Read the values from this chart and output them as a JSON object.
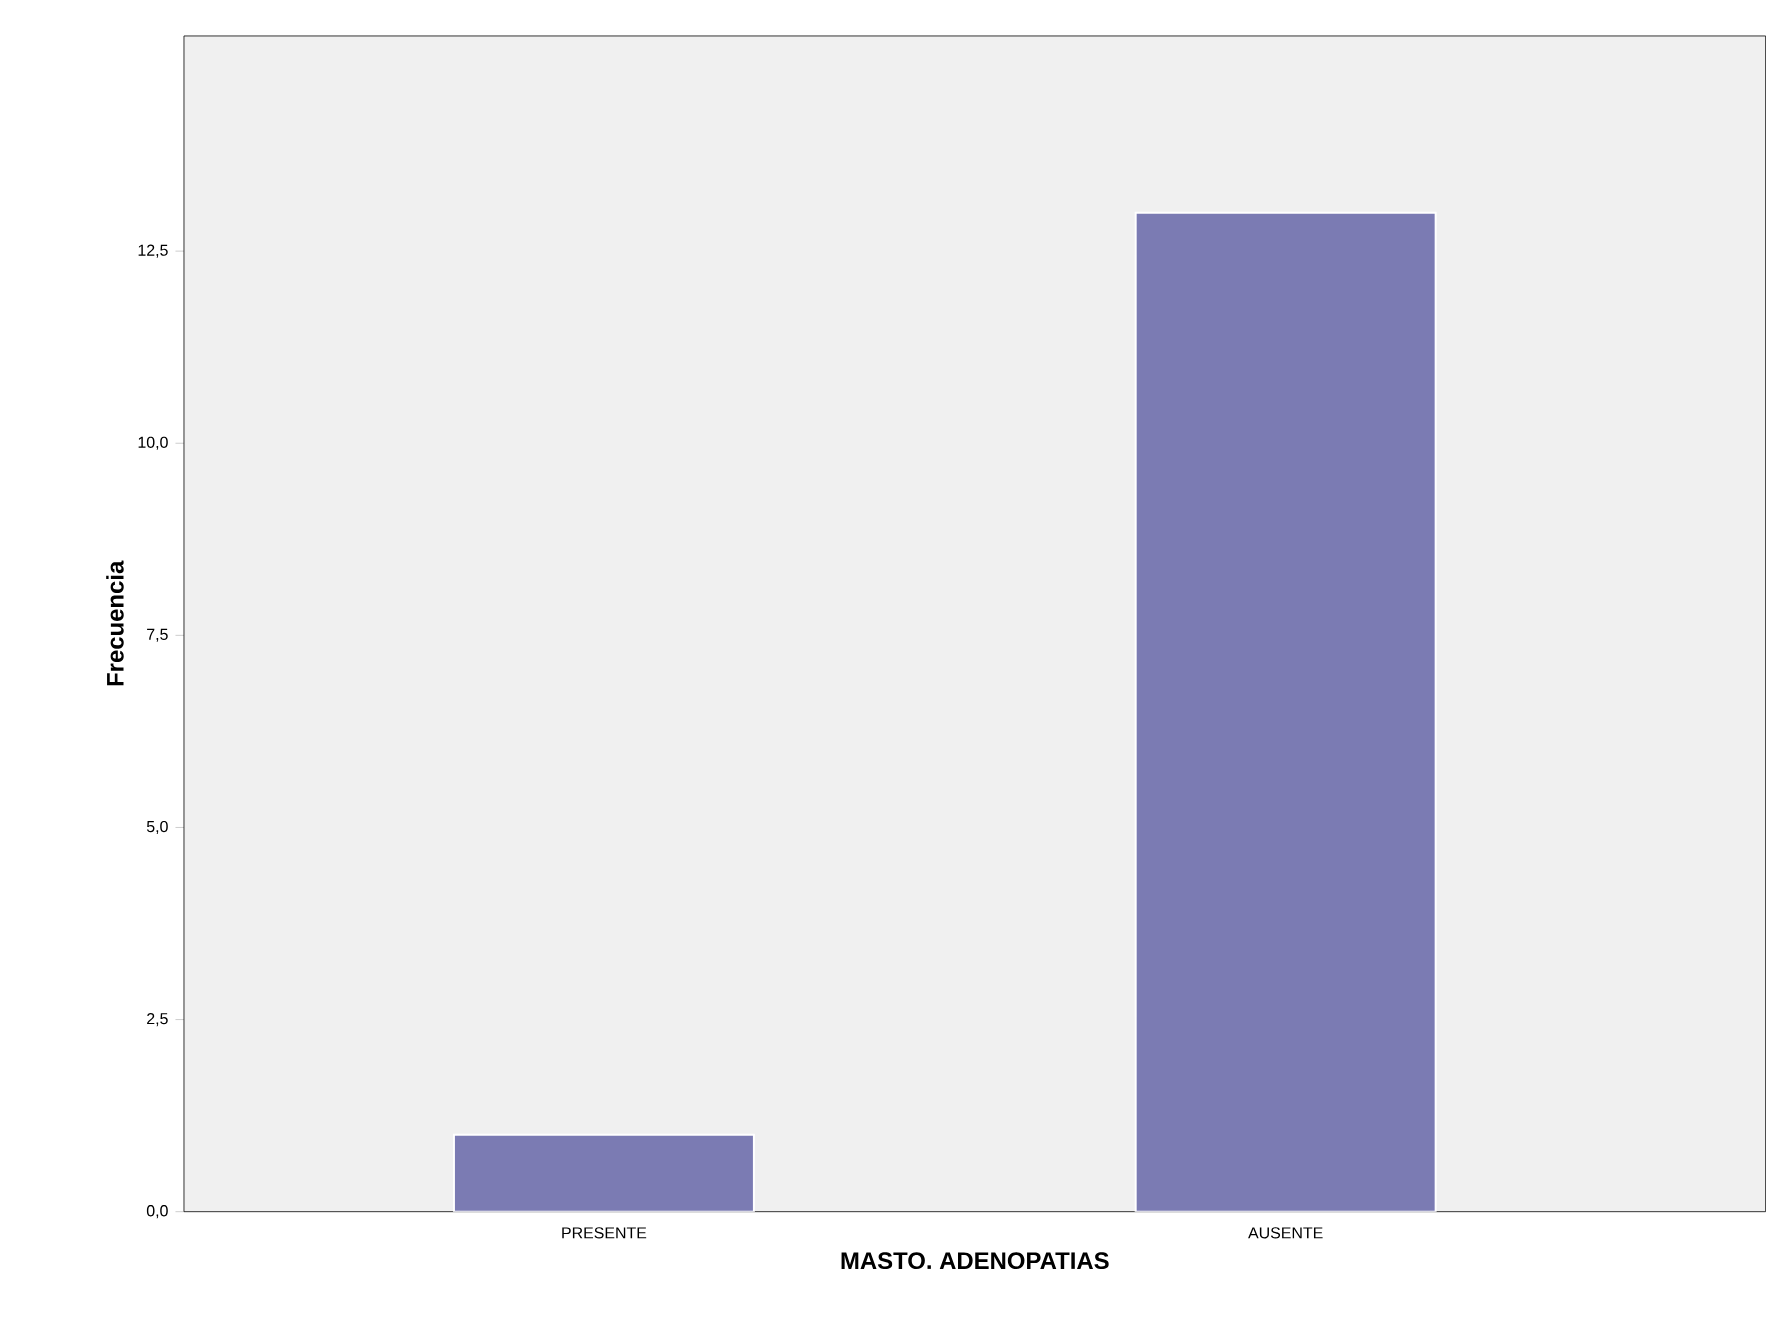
{
  "chart_data": {
    "type": "bar",
    "xlabel": "MASTO. ADENOPATIAS",
    "ylabel": "Frecuencia",
    "categories": [
      "PRESENTE",
      "AUSENTE"
    ],
    "values": [
      1,
      13
    ],
    "color": "#7b7bb3",
    "ylim": [
      0,
      15.3
    ],
    "yticks": [
      {
        "value": 0,
        "label": "0,0"
      },
      {
        "value": 2.5,
        "label": "2,5"
      },
      {
        "value": 5,
        "label": "5,0"
      },
      {
        "value": 7.5,
        "label": "7,5"
      },
      {
        "value": 10,
        "label": "10,0"
      },
      {
        "value": 12.5,
        "label": "12,5"
      }
    ]
  }
}
